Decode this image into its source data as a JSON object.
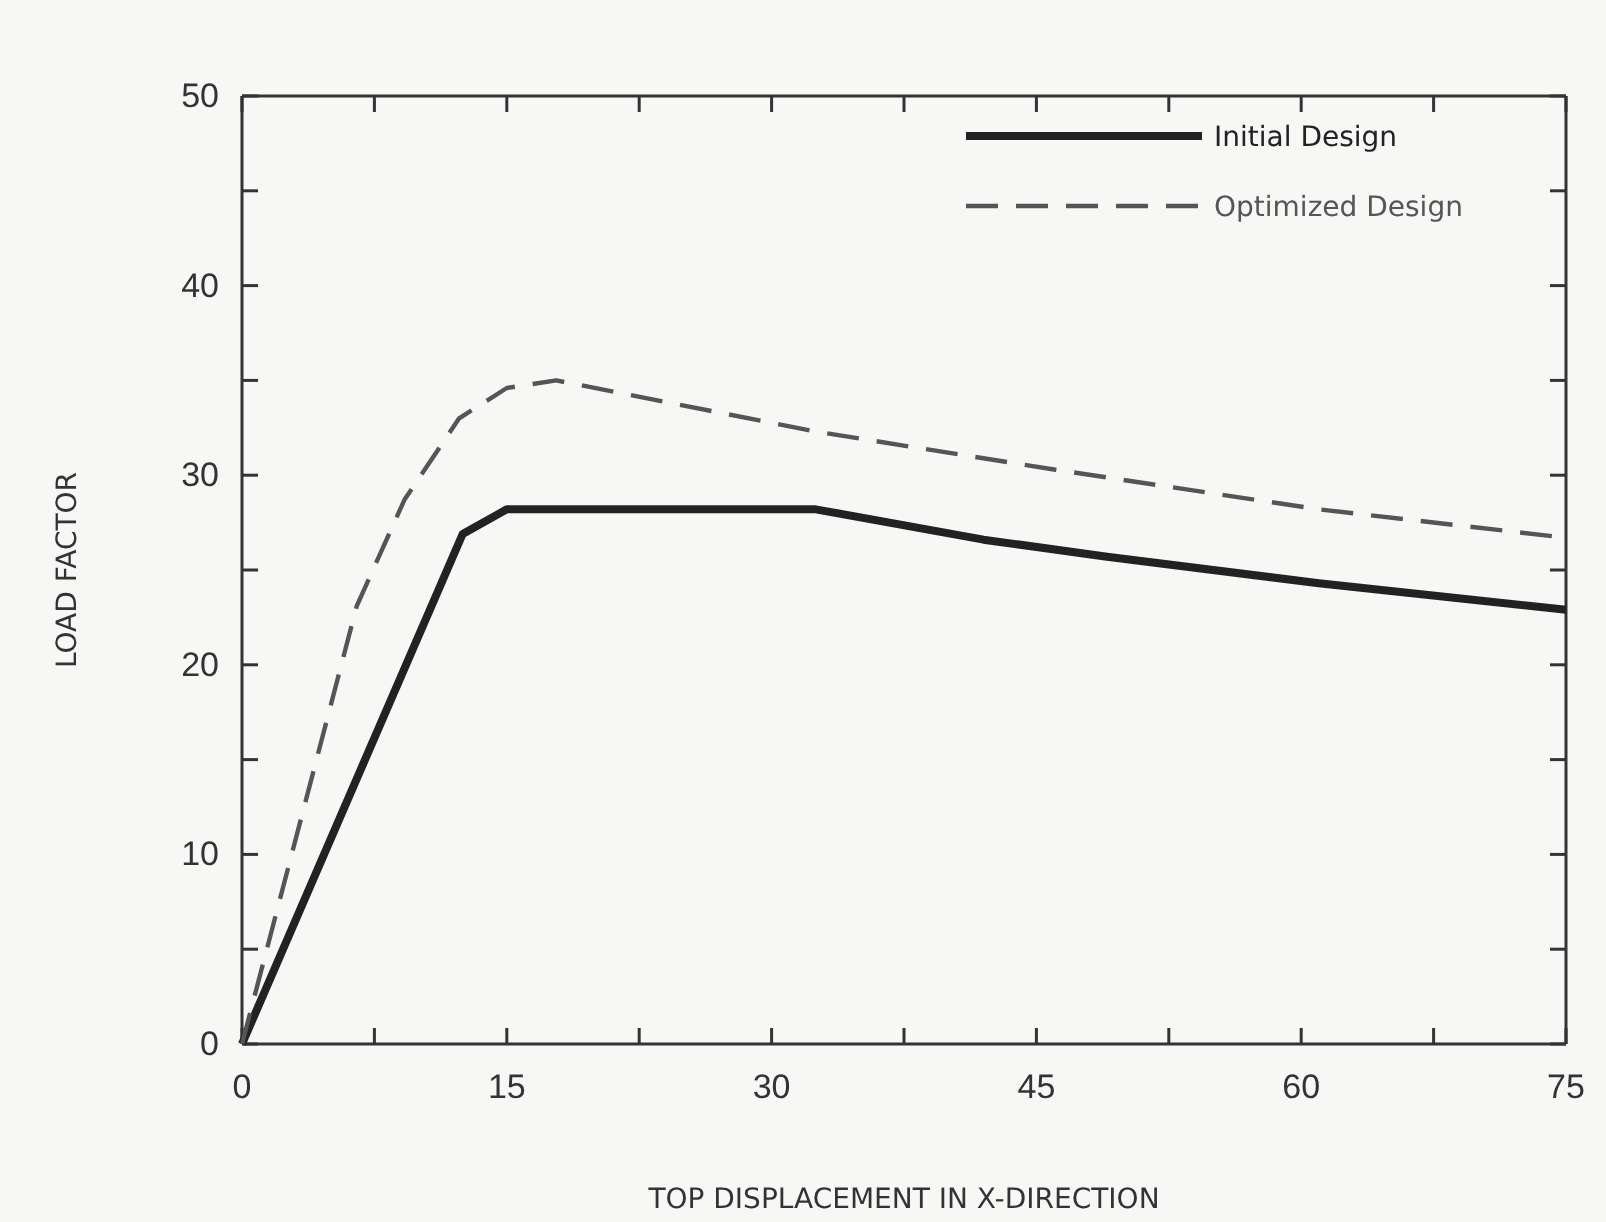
{
  "chart_data": {
    "type": "line",
    "xlabel": "TOP DISPLACEMENT IN X-DIRECTION",
    "ylabel": "LOAD FACTOR",
    "xlim": [
      0,
      75
    ],
    "ylim": [
      0,
      50
    ],
    "xticks": [
      0,
      {
        "value": 7.5,
        "label": null
      },
      15,
      {
        "value": 22.5,
        "label": null
      },
      30,
      {
        "value": 37.5,
        "label": null
      },
      45,
      {
        "value": 52.5,
        "label": null
      },
      60,
      {
        "value": 67.5,
        "label": null
      },
      75
    ],
    "yticks": [
      0,
      {
        "value": 5,
        "label": null
      },
      10,
      {
        "value": 15,
        "label": null
      },
      20,
      {
        "value": 25,
        "label": null
      },
      30,
      {
        "value": 35,
        "label": null
      },
      40,
      {
        "value": 45,
        "label": null
      },
      50
    ],
    "legend": "top right",
    "grid": false,
    "series": [
      {
        "name": "Initial Design",
        "color": "#222222",
        "line_style": "solid",
        "x": [
          0,
          12.5,
          15,
          32.5,
          42,
          49,
          61,
          75
        ],
        "values": [
          0,
          26.9,
          28.2,
          28.2,
          26.6,
          25.7,
          24.3,
          22.9
        ]
      },
      {
        "name": "Optimized Design",
        "color": "#555555",
        "line_style": "dashed",
        "x": [
          0,
          6.5,
          9.2,
          12.3,
          15,
          17.8,
          32.5,
          46,
          61,
          75
        ],
        "values": [
          0,
          23.1,
          28.7,
          33,
          34.6,
          35,
          32.3,
          30.3,
          28.2,
          26.7
        ]
      }
    ]
  }
}
